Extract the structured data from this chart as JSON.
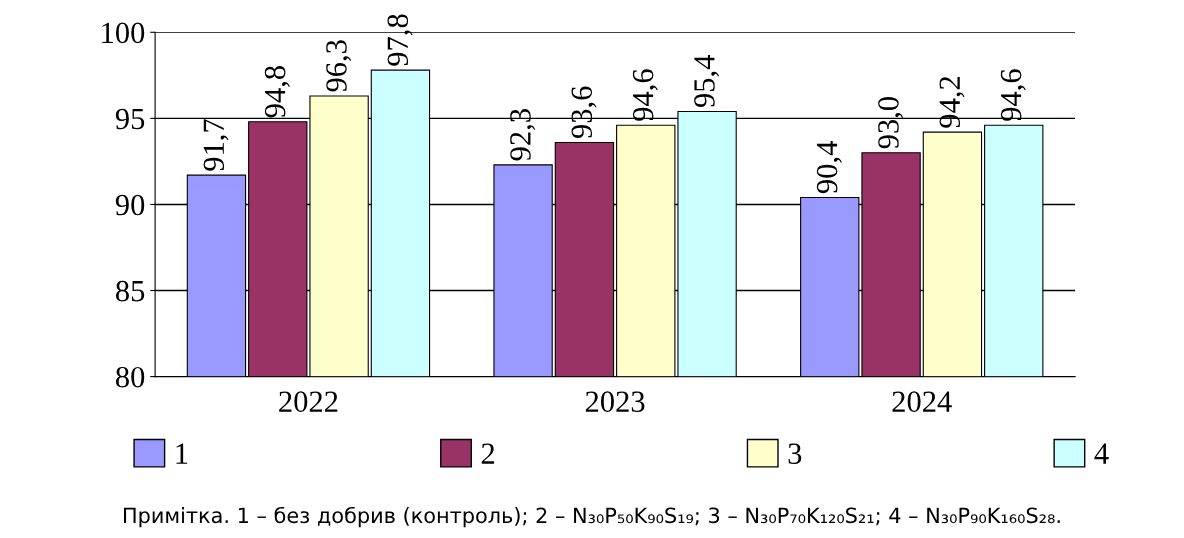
{
  "chart_data": {
    "type": "bar",
    "categories": [
      "2022",
      "2023",
      "2024"
    ],
    "series": [
      {
        "name": "1",
        "color": "#9999ff",
        "values": [
          91.7,
          92.3,
          90.4
        ],
        "value_labels": [
          "91,7",
          "92,3",
          "90,4"
        ]
      },
      {
        "name": "2",
        "color": "#993366",
        "values": [
          94.8,
          93.6,
          93.0
        ],
        "value_labels": [
          "94,8",
          "93,6",
          "93,0"
        ]
      },
      {
        "name": "3",
        "color": "#ffffcc",
        "values": [
          96.3,
          94.6,
          94.2
        ],
        "value_labels": [
          "96,3",
          "94,6",
          "94,2"
        ]
      },
      {
        "name": "4",
        "color": "#ccffff",
        "values": [
          97.8,
          95.4,
          94.6
        ],
        "value_labels": [
          "97,8",
          "95,4",
          "94,6"
        ]
      }
    ],
    "ylim": [
      80,
      100
    ],
    "yticks": [
      80,
      85,
      90,
      95,
      100
    ],
    "grid": "y",
    "legend": "bottom",
    "annotations": [
      "Примітка. 1 – без добрив (контроль); 2 – N₃₀P₅₀K₉₀S₁₉; 3 – N₃₀P₇₀K₁₂₀S₂₁; 4 – N₃₀P₉₀K₁₆₀S₂₈."
    ]
  }
}
